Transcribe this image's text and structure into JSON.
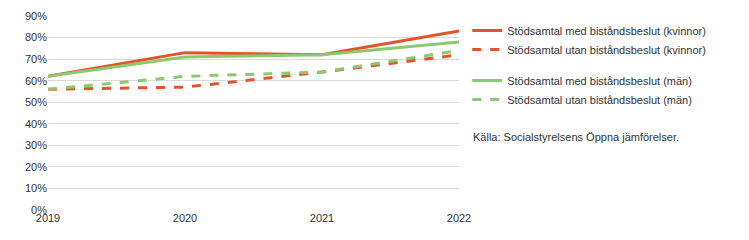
{
  "chart_data": {
    "type": "line",
    "categories": [
      "2019",
      "2020",
      "2021",
      "2022"
    ],
    "series": [
      {
        "name": "Stödsamtal med biståndsbeslut (kvinnor)",
        "color": "#e0542a",
        "line_style": "solid",
        "values": [
          62,
          73,
          72,
          83
        ]
      },
      {
        "name": "Stödsamtal utan biståndsbeslut (kvinnor)",
        "color": "#e0542a",
        "line_style": "dash",
        "values": [
          56,
          57,
          64,
          72
        ]
      },
      {
        "name": "Stödsamtal med biståndsbeslut (män)",
        "color": "#8dc86e",
        "line_style": "solid",
        "values": [
          62,
          71,
          72,
          78
        ]
      },
      {
        "name": "Stödsamtal utan biståndsbeslut (män)",
        "color": "#8dc86e",
        "line_style": "dash",
        "values": [
          56,
          62,
          64,
          74
        ]
      }
    ],
    "ylim": [
      0,
      90
    ],
    "yticks": [
      {
        "value": 0,
        "label": "0%"
      },
      {
        "value": 10,
        "label": "10%"
      },
      {
        "value": 20,
        "label": "20%"
      },
      {
        "value": 30,
        "label": "30%"
      },
      {
        "value": 40,
        "label": "40%"
      },
      {
        "value": 50,
        "label": "50%"
      },
      {
        "value": 60,
        "label": "60%"
      },
      {
        "value": 70,
        "label": "70%"
      },
      {
        "value": 80,
        "label": "80%"
      },
      {
        "value": 90,
        "label": "90%"
      }
    ],
    "grid": true,
    "legend": "right",
    "annotations": [
      "Källa: Socialstyrelsens Öppna jämförelser."
    ]
  }
}
